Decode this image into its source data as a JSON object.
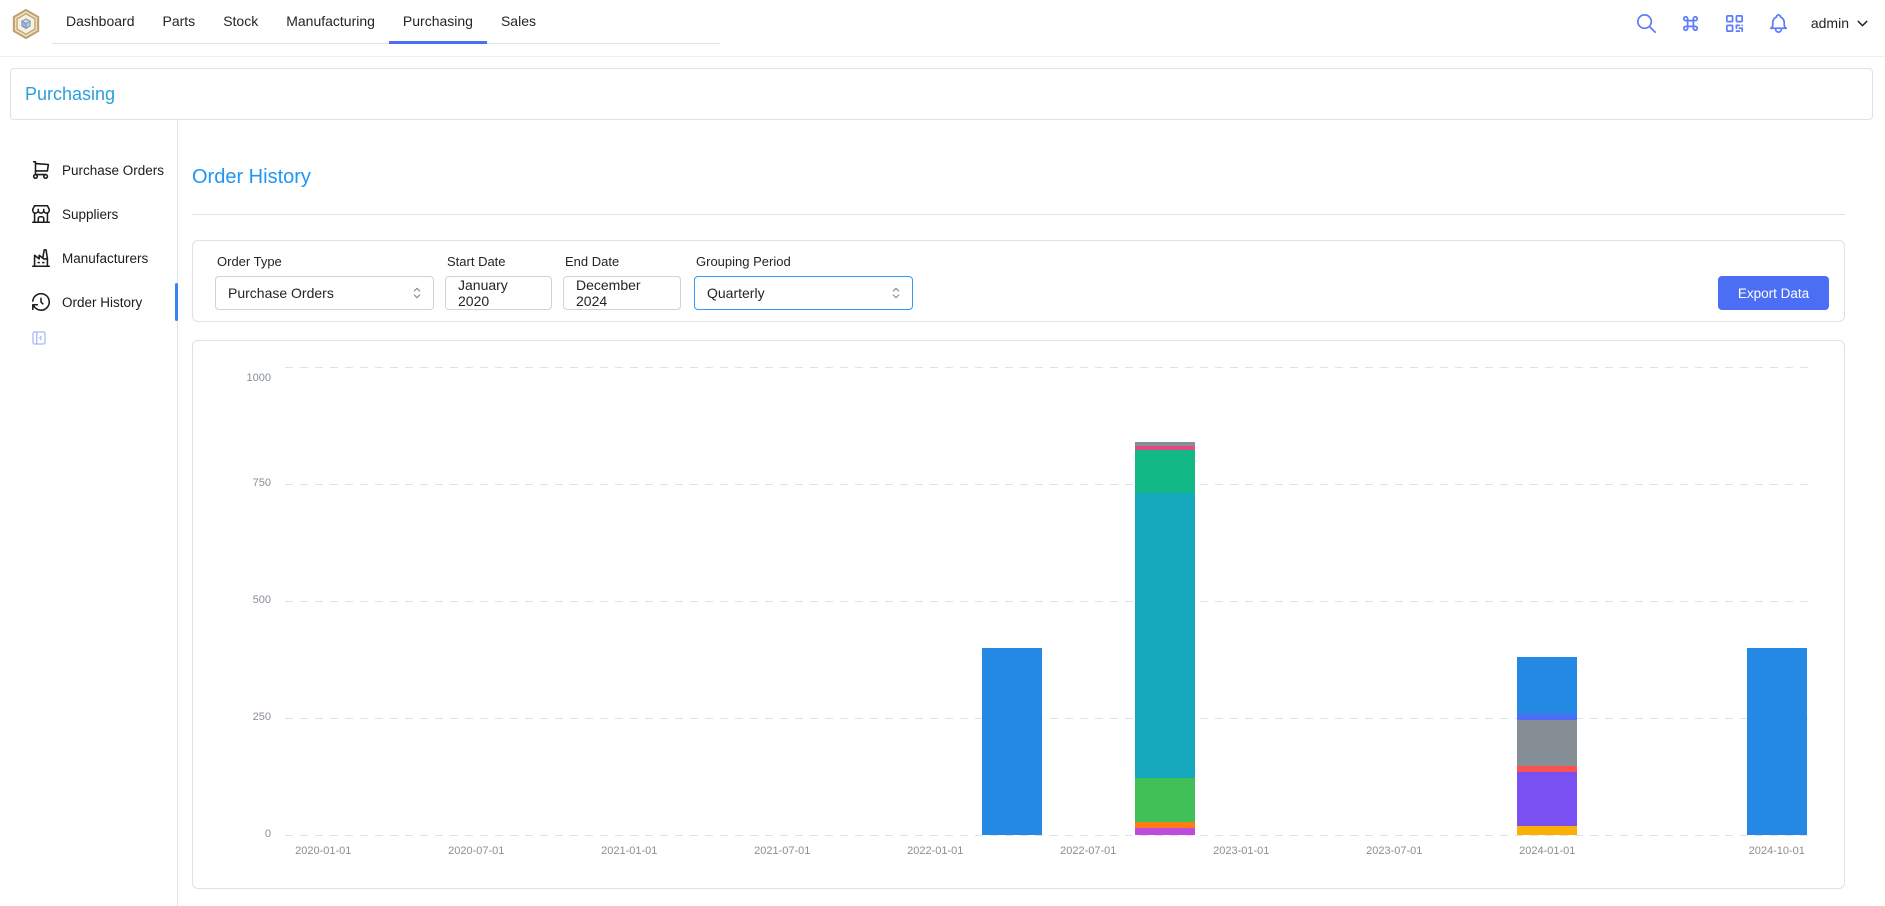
{
  "header": {
    "tabs": [
      {
        "label": "Dashboard",
        "active": false
      },
      {
        "label": "Parts",
        "active": false
      },
      {
        "label": "Stock",
        "active": false
      },
      {
        "label": "Manufacturing",
        "active": false
      },
      {
        "label": "Purchasing",
        "active": true
      },
      {
        "label": "Sales",
        "active": false
      }
    ],
    "username": "admin"
  },
  "breadcrumb": {
    "label": "Purchasing"
  },
  "sidebar": {
    "items": [
      {
        "label": "Purchase Orders",
        "icon": "shopping-cart-icon",
        "active": false
      },
      {
        "label": "Suppliers",
        "icon": "building-store-icon",
        "active": false
      },
      {
        "label": "Manufacturers",
        "icon": "building-factory-icon",
        "active": false
      },
      {
        "label": "Order History",
        "icon": "history-icon",
        "active": true
      }
    ]
  },
  "main": {
    "title": "Order History",
    "filters": {
      "order_type": {
        "label": "Order Type",
        "value": "Purchase Orders"
      },
      "start_date": {
        "label": "Start Date",
        "value": "January 2020"
      },
      "end_date": {
        "label": "End Date",
        "value": "December 2024"
      },
      "grouping": {
        "label": "Grouping Period",
        "value": "Quarterly"
      },
      "export_label": "Export Data"
    }
  },
  "colors": {
    "accent_indigo": "#4c6ef5",
    "header_icon": "#5c7cfa",
    "breadcrumb_link": "#2b9fdb",
    "page_title": "#2196f3",
    "active_indicator": "#3b82f6",
    "card_border": "#dee2e6",
    "axis_label": "#878f98"
  },
  "chart_data": {
    "type": "stacked-bar",
    "title": "",
    "xlabel": "",
    "ylabel": "",
    "grid": "horizontal-dashed",
    "legend": "none",
    "ylim": [
      0,
      1000
    ],
    "y_ticks": [
      0,
      250,
      500,
      750,
      1000
    ],
    "x_categories": [
      "2020-01-01",
      "2020-04-01",
      "2020-07-01",
      "2020-10-01",
      "2021-01-01",
      "2021-04-01",
      "2021-07-01",
      "2021-10-01",
      "2022-01-01",
      "2022-04-01",
      "2022-07-01",
      "2022-10-01",
      "2023-01-01",
      "2023-04-01",
      "2023-07-01",
      "2023-10-01",
      "2024-01-01",
      "2024-04-01",
      "2024-07-01",
      "2024-10-01"
    ],
    "x_ticks": [
      {
        "index": 0,
        "label": "2020-01-01"
      },
      {
        "index": 2,
        "label": "2020-07-01"
      },
      {
        "index": 4,
        "label": "2021-01-01"
      },
      {
        "index": 6,
        "label": "2021-07-01"
      },
      {
        "index": 8,
        "label": "2022-01-01"
      },
      {
        "index": 10,
        "label": "2022-07-01"
      },
      {
        "index": 12,
        "label": "2023-01-01"
      },
      {
        "index": 14,
        "label": "2023-07-01"
      },
      {
        "index": 16,
        "label": "2024-01-01"
      },
      {
        "index": 19,
        "label": "2024-10-01"
      }
    ],
    "bars": [
      {
        "category": "2022-04-01",
        "total": 400,
        "segments": [
          {
            "name": "blue",
            "color": "#2389e4",
            "value": 400
          }
        ]
      },
      {
        "category": "2022-10-01",
        "total": 840,
        "segments": [
          {
            "name": "grape",
            "color": "#be4bdb",
            "value": 15
          },
          {
            "name": "orange",
            "color": "#fd7e14",
            "value": 12
          },
          {
            "name": "green",
            "color": "#40c057",
            "value": 95
          },
          {
            "name": "cyan",
            "color": "#16a8bc",
            "value": 608
          },
          {
            "name": "teal",
            "color": "#12b886",
            "value": 92
          },
          {
            "name": "pink",
            "color": "#e64980",
            "value": 10
          },
          {
            "name": "gray",
            "color": "#868e96",
            "value": 8
          }
        ]
      },
      {
        "category": "2024-01-01",
        "total": 380,
        "segments": [
          {
            "name": "yellow",
            "color": "#fab005",
            "value": 20
          },
          {
            "name": "violet",
            "color": "#7950f2",
            "value": 115
          },
          {
            "name": "red",
            "color": "#fa5252",
            "value": 13
          },
          {
            "name": "gray",
            "color": "#868e96",
            "value": 98
          },
          {
            "name": "indigo",
            "color": "#4c6ef5",
            "value": 12
          },
          {
            "name": "blue",
            "color": "#2389e4",
            "value": 122
          }
        ]
      },
      {
        "category": "2024-10-01",
        "total": 400,
        "segments": [
          {
            "name": "blue",
            "color": "#2389e4",
            "value": 400
          }
        ]
      }
    ]
  }
}
